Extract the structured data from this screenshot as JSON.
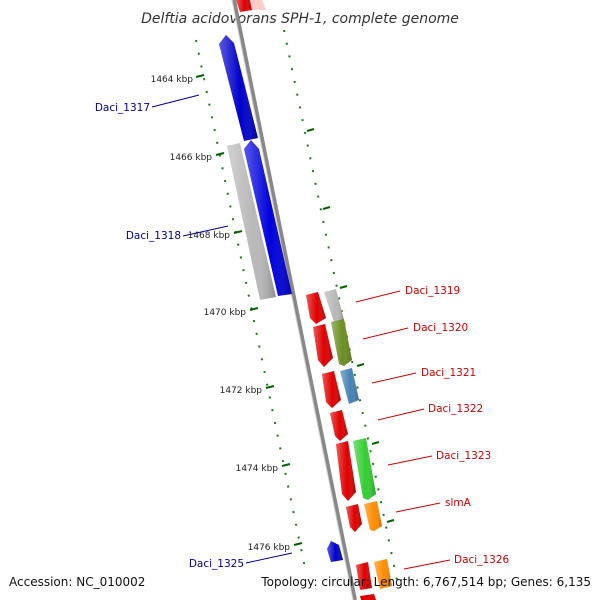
{
  "title": "Delftia acidovorans SPH-1, complete genome",
  "footer": {
    "accession": "Accession: NC_010002",
    "topology": "Topology: circular; Length: 6,767,514 bp; Genes: 6,135"
  },
  "ruler": {
    "ticks": [
      "1464 kbp",
      "1466 kbp",
      "1468 kbp",
      "1470 kbp",
      "1472 kbp",
      "1474 kbp",
      "1476 kbp"
    ]
  },
  "genes": [
    {
      "label": "Daci_1317",
      "strand": "reverse",
      "color": "#0000cc"
    },
    {
      "label": "Daci_1318",
      "strand": "reverse",
      "color": "#0000dd"
    },
    {
      "label": "",
      "strand": "reverse",
      "color": "#b8b8b8"
    },
    {
      "label": "Daci_1319",
      "strand": "forward",
      "color": "#b8b8b8"
    },
    {
      "label": "Daci_1320",
      "strand": "forward",
      "color": "#6b8e23"
    },
    {
      "label": "Daci_1321",
      "strand": "forward",
      "color": "#4682b4"
    },
    {
      "label": "Daci_1322",
      "strand": "forward",
      "color": "#e00000"
    },
    {
      "label": "Daci_1323",
      "strand": "forward",
      "color": "#32cd32"
    },
    {
      "label": "slmA",
      "strand": "forward",
      "color": "#ff8c00"
    },
    {
      "label": "Daci_1325",
      "strand": "reverse",
      "color": "#0000cc"
    },
    {
      "label": "Daci_1326",
      "strand": "forward",
      "color": "#ff8c00"
    }
  ],
  "colors": {
    "forward_label": "#cc0000",
    "reverse_label": "#000099",
    "backbone": "#888888",
    "tick": "#006400"
  }
}
